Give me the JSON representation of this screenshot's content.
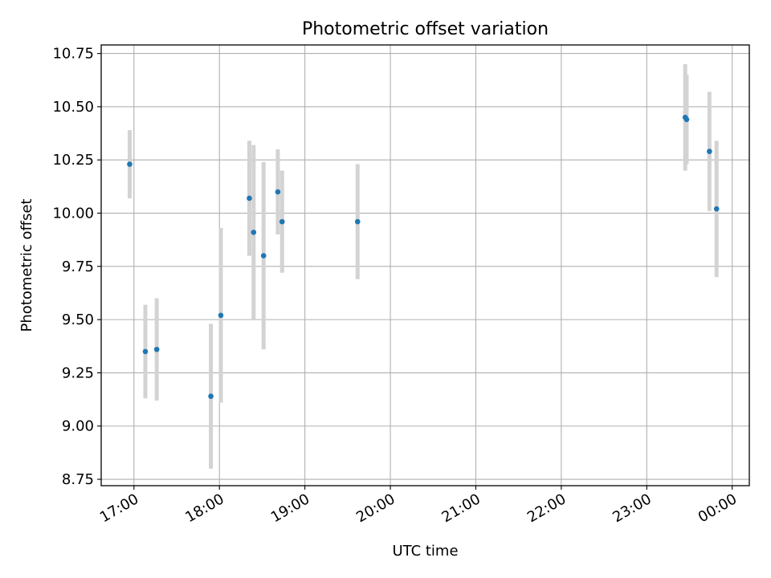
{
  "chart_data": {
    "type": "scatter",
    "title": "Photometric offset variation",
    "xlabel": "UTC time",
    "ylabel": "Photometric offset",
    "x_unit": "UTC time (HH:MM)",
    "xlim": [
      "16:37",
      "00:12"
    ],
    "ylim": [
      8.72,
      10.79
    ],
    "x_ticks": [
      "17:00",
      "18:00",
      "19:00",
      "20:00",
      "21:00",
      "22:00",
      "23:00",
      "00:00"
    ],
    "y_ticks": [
      "8.75",
      "9.00",
      "9.25",
      "9.50",
      "9.75",
      "10.00",
      "10.25",
      "10.50",
      "10.75"
    ],
    "grid": true,
    "marker_color": "#1f77b4",
    "errorbar_color": "#d3d3d3",
    "points": [
      {
        "x": "16:57",
        "y": 10.23,
        "yerr": 0.16
      },
      {
        "x": "17:08",
        "y": 9.35,
        "yerr": 0.22
      },
      {
        "x": "17:16",
        "y": 9.36,
        "yerr": 0.24
      },
      {
        "x": "17:54",
        "y": 9.14,
        "yerr": 0.34
      },
      {
        "x": "18:01",
        "y": 9.52,
        "yerr": 0.41
      },
      {
        "x": "18:21",
        "y": 10.07,
        "yerr": 0.27
      },
      {
        "x": "18:24",
        "y": 9.91,
        "yerr": 0.41
      },
      {
        "x": "18:31",
        "y": 9.8,
        "yerr": 0.44
      },
      {
        "x": "18:41",
        "y": 10.1,
        "yerr": 0.2
      },
      {
        "x": "18:44",
        "y": 9.96,
        "yerr": 0.24
      },
      {
        "x": "19:37",
        "y": 9.96,
        "yerr": 0.27
      },
      {
        "x": "23:27",
        "y": 10.45,
        "yerr": 0.25
      },
      {
        "x": "23:28",
        "y": 10.44,
        "yerr": 0.21
      },
      {
        "x": "23:44",
        "y": 10.29,
        "yerr": 0.28
      },
      {
        "x": "23:49",
        "y": 10.02,
        "yerr": 0.32
      }
    ]
  }
}
